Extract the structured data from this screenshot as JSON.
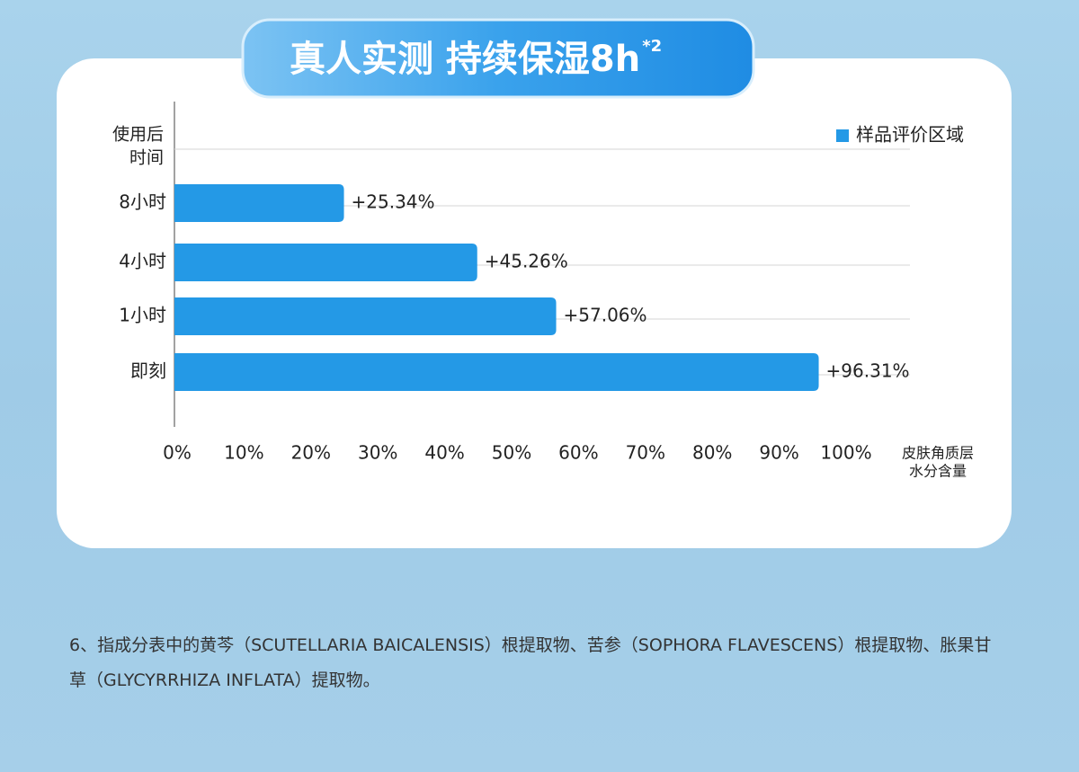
{
  "chart_data": {
    "type": "bar",
    "orientation": "horizontal",
    "title": "真人实测 持续保湿8h",
    "title_note": "*2",
    "y_label": [
      "使用后",
      "时间"
    ],
    "x_label": [
      "皮肤角质层",
      "水分含量"
    ],
    "categories": [
      "8小时",
      "4小时",
      "1小时",
      "即刻"
    ],
    "series": [
      {
        "name": "样品评价区域",
        "color": "#2499e6",
        "values": [
          25.34,
          45.26,
          57.06,
          96.31
        ],
        "value_labels": [
          "+25.34%",
          "+45.26%",
          "+57.06%",
          "+96.31%"
        ]
      }
    ],
    "xlim": [
      0,
      100
    ],
    "xticks": [
      {
        "value": 0,
        "label": "0%"
      },
      {
        "value": 10,
        "label": "10%"
      },
      {
        "value": 20,
        "label": "20%"
      },
      {
        "value": 30,
        "label": "30%"
      },
      {
        "value": 40,
        "label": "40%"
      },
      {
        "value": 50,
        "label": "50%"
      },
      {
        "value": 60,
        "label": "60%"
      },
      {
        "value": 70,
        "label": "70%"
      },
      {
        "value": 80,
        "label": "80%"
      },
      {
        "value": 90,
        "label": "90%"
      },
      {
        "value": 100,
        "label": "100%"
      }
    ],
    "legend": "top-right",
    "grid": true
  },
  "footnote": "6、指成分表中的黄芩（SCUTELLARIA BAICALENSIS）根提取物、苦参（SOPHORA FLAVESCENS）根提取物、胀果甘草（GLYCYRRHIZA INFLATA）提取物。"
}
